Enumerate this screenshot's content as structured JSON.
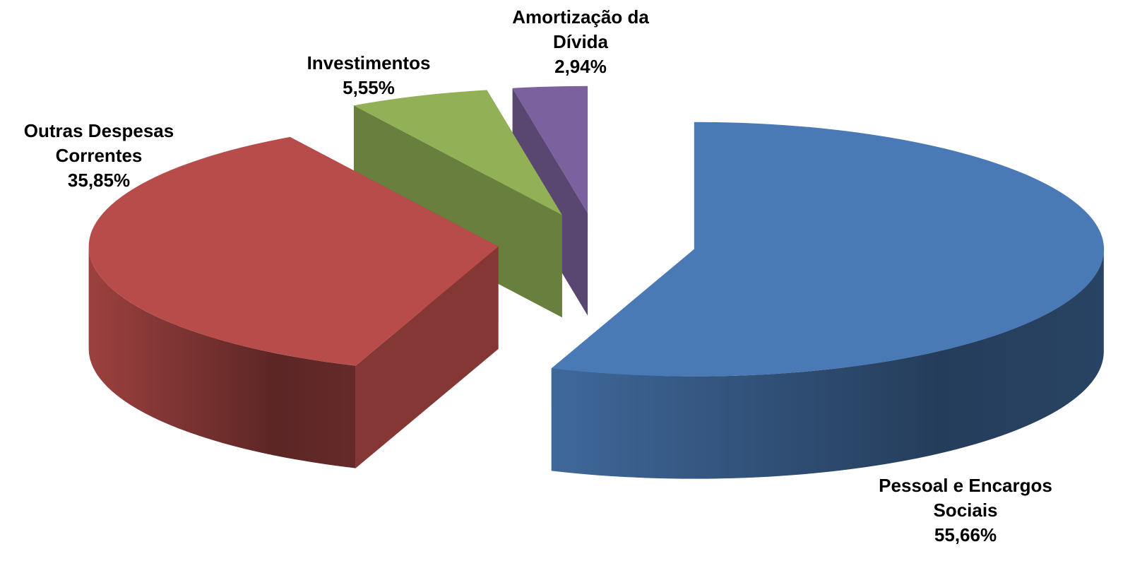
{
  "chart_data": {
    "type": "pie3d",
    "categories": [
      "Pessoal e Encargos Sociais",
      "Outras Despesas Correntes",
      "Investimentos",
      "Amortização da Dívida"
    ],
    "values": [
      55.66,
      35.85,
      5.55,
      2.94
    ],
    "value_labels": [
      "55,66%",
      "35,85%",
      "5,55%",
      "2,94%"
    ],
    "colors": [
      "#4a7ab5",
      "#b84c4a",
      "#92b055",
      "#7b619d"
    ],
    "exploded": true
  }
}
